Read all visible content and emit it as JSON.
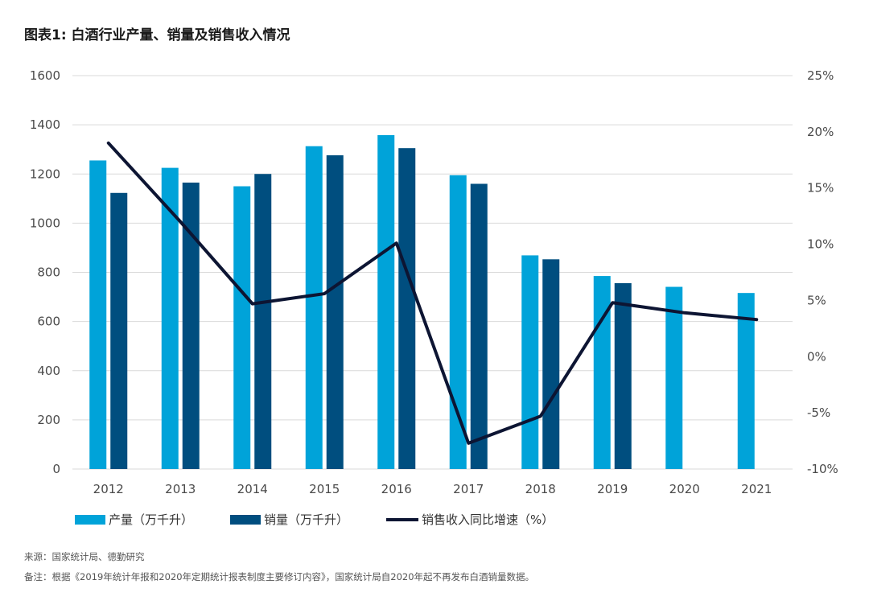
{
  "title": "图表1: 白酒行业产量、销量及销售收入情况",
  "source": "来源：国家统计局、德勤研究",
  "note": "备注：根据《2019年统计年报和2020年定期统计报表制度主要修订内容》，国家统计局自2020年起不再发布白酒销量数据。",
  "colors": {
    "production": "#00a3d9",
    "sales": "#004e7f",
    "growth": "#0d1533",
    "grid": "#d9d9d9"
  },
  "chart_data": {
    "type": "bar",
    "categories": [
      "2012",
      "2013",
      "2014",
      "2015",
      "2016",
      "2017",
      "2018",
      "2019",
      "2020",
      "2021"
    ],
    "series": [
      {
        "name": "产量（万千升）",
        "type": "bar",
        "axis": "left",
        "values": [
          1255,
          1225,
          1150,
          1313,
          1358,
          1195,
          869,
          785,
          741,
          716
        ]
      },
      {
        "name": "销量（万千升）",
        "type": "bar",
        "axis": "left",
        "values": [
          1123,
          1165,
          1200,
          1276,
          1305,
          1160,
          853,
          756,
          null,
          null
        ]
      },
      {
        "name": "销售收入同比增速（%）",
        "type": "line",
        "axis": "right",
        "values": [
          19.0,
          12.0,
          4.7,
          5.6,
          10.1,
          -7.7,
          -5.3,
          4.8,
          3.9,
          3.3
        ]
      }
    ],
    "ylim": [
      0,
      1600
    ],
    "y_ticks": [
      "0",
      "200",
      "400",
      "600",
      "800",
      "1000",
      "1200",
      "1400",
      "1600"
    ],
    "y2lim": [
      -10,
      25
    ],
    "y2_ticks": [
      "-10%",
      "-5%",
      "0%",
      "5%",
      "10%",
      "15%",
      "20%",
      "25%"
    ],
    "grid": true,
    "legend_position": "bottom-left"
  }
}
